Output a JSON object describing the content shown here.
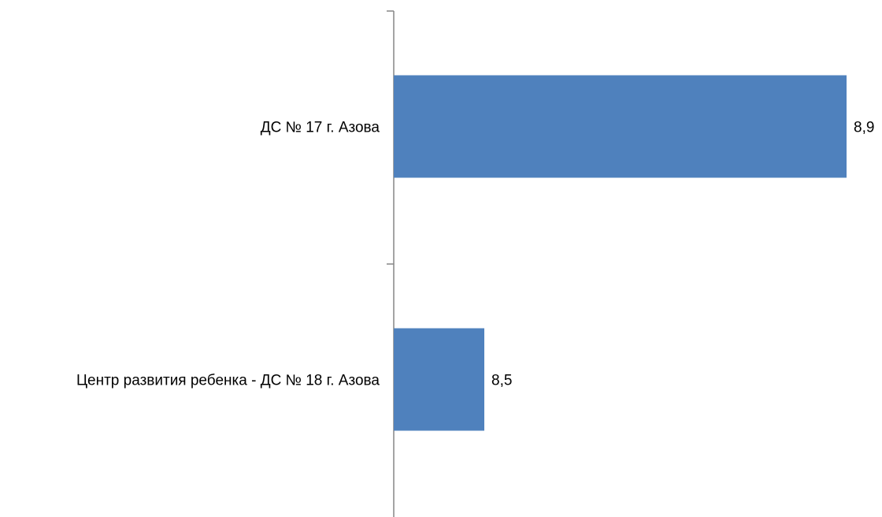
{
  "chart_data": {
    "type": "bar",
    "orientation": "horizontal",
    "categories": [
      "ДС № 17 г. Азова",
      "Центр развития ребенка - ДС № 18 г. Азова"
    ],
    "values": [
      8.9,
      8.5
    ],
    "data_labels": [
      "8,9",
      "8,5"
    ],
    "title": "",
    "xlabel": "",
    "ylabel": "",
    "grid": false,
    "legend": "none",
    "bar_color": "#4F81BD"
  }
}
